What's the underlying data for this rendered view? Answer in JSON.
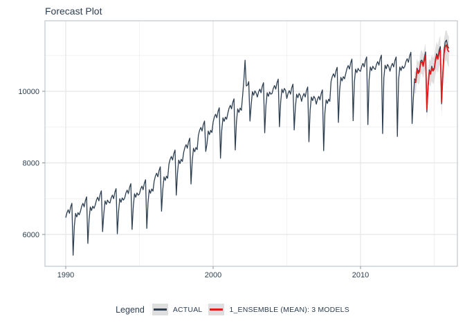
{
  "title": "Forecast Plot",
  "colors": {
    "actual": "#2c3e50",
    "ensemble": "#e31a1c",
    "ribbon": "#d8d8d8",
    "grid_major": "#e5e5e5",
    "grid_minor": "#f1f1f1",
    "panel_border": "#b6bbc1",
    "tick": "#8a9097",
    "text": "#2c3e50"
  },
  "legend": {
    "title": "Legend",
    "items": [
      {
        "label": "ACTUAL",
        "color": "#2c3e50"
      },
      {
        "label": "1_ENSEMBLE (MEAN): 3 MODELS",
        "color": "#e31a1c"
      }
    ]
  },
  "x_axis": {
    "ticks": [
      {
        "label": "1990",
        "year": 1990
      },
      {
        "label": "2000",
        "year": 2000
      },
      {
        "label": "2010",
        "year": 2010
      }
    ],
    "minor_years": [
      1995,
      2005,
      2015
    ]
  },
  "y_axis": {
    "ticks": [
      {
        "label": "6000",
        "value": 6000
      },
      {
        "label": "8000",
        "value": 8000
      },
      {
        "label": "10000",
        "value": 10000
      }
    ],
    "minor_values": [
      7000,
      9000,
      11000
    ]
  },
  "chart_data": {
    "type": "line",
    "title": "Forecast Plot",
    "xlabel": "",
    "ylabel": "",
    "x_start_year": 1990,
    "frequency": "monthly",
    "xlim": [
      1988.6,
      2016.6
    ],
    "ylim": [
      5100,
      11980
    ],
    "grid": true,
    "legend_position": "bottom",
    "series": [
      {
        "name": "ACTUAL",
        "start_month_index": 0,
        "values": [
          6470,
          6610,
          6690,
          6590,
          6770,
          6870,
          5420,
          6230,
          6590,
          6490,
          6610,
          6550,
          6650,
          6790,
          6870,
          6770,
          6950,
          7050,
          5750,
          6410,
          6770,
          6670,
          6790,
          6730,
          6820,
          6960,
          7040,
          6940,
          7120,
          7220,
          6080,
          6580,
          6940,
          6840,
          6960,
          6900,
          6880,
          7020,
          7100,
          7000,
          7180,
          7280,
          6020,
          6640,
          7000,
          6900,
          7020,
          6960,
          7020,
          7160,
          7240,
          7140,
          7320,
          7420,
          6140,
          6780,
          7140,
          7040,
          7160,
          7100,
          7130,
          7270,
          7350,
          7250,
          7430,
          7530,
          6170,
          6890,
          7250,
          7150,
          7270,
          7210,
          7490,
          7630,
          7710,
          7610,
          7790,
          7890,
          6650,
          7250,
          7610,
          7510,
          7630,
          7570,
          7960,
          8100,
          8180,
          8080,
          8260,
          8360,
          7100,
          7720,
          8080,
          7980,
          8100,
          8040,
          8290,
          8430,
          8510,
          8410,
          8590,
          8690,
          7410,
          8050,
          8410,
          8310,
          8430,
          8370,
          8770,
          8910,
          8990,
          8890,
          9070,
          9170,
          8320,
          8530,
          8890,
          8790,
          8910,
          8850,
          9140,
          9280,
          9360,
          9260,
          9440,
          9540,
          8130,
          8900,
          9260,
          9160,
          9280,
          9220,
          9390,
          9530,
          9610,
          9510,
          9690,
          9790,
          8360,
          9150,
          9510,
          9410,
          9530,
          9470,
          9870,
          10300,
          10870,
          10150,
          10170,
          10270,
          9170,
          9630,
          9990,
          9890,
          10010,
          9950,
          9840,
          9980,
          10060,
          9960,
          10140,
          10240,
          8840,
          9600,
          9960,
          9860,
          9980,
          9920,
          9940,
          10080,
          10160,
          10060,
          10240,
          10340,
          9010,
          9700,
          10060,
          9960,
          10080,
          10020,
          9800,
          9940,
          10020,
          9920,
          10100,
          10200,
          8920,
          9560,
          9920,
          9820,
          9940,
          9880,
          9720,
          9860,
          9940,
          9840,
          10020,
          10120,
          8590,
          9480,
          9840,
          9740,
          9860,
          9800,
          9640,
          9780,
          9860,
          9760,
          9940,
          10040,
          8340,
          9400,
          9760,
          9660,
          9780,
          9720,
          10270,
          10410,
          10490,
          10390,
          10570,
          10670,
          9130,
          10030,
          10390,
          10290,
          10410,
          10350,
          10500,
          10640,
          10720,
          10620,
          10800,
          10900,
          9180,
          10260,
          10620,
          10520,
          10640,
          10580,
          10560,
          10700,
          10780,
          10680,
          10860,
          10960,
          9070,
          10320,
          10680,
          10580,
          10700,
          10640,
          10610,
          10750,
          10830,
          10730,
          10910,
          11010,
          8820,
          10370,
          10730,
          10630,
          10750,
          10690,
          10560,
          10700,
          10780,
          10680,
          10860,
          10960,
          8740,
          10320,
          10680,
          10580,
          10700,
          10640,
          10690,
          10830,
          10910,
          10810,
          10990,
          11090,
          9100,
          9800,
          10350,
          10300,
          10650,
          10550,
          10600,
          10850,
          10870,
          10750,
          10950,
          11100,
          9420,
          10100,
          10600,
          10500,
          10700,
          10600,
          10650,
          10900,
          11050,
          10950,
          11150,
          11250,
          9650,
          10500,
          11150,
          11380,
          11430,
          11250,
          11200
        ]
      },
      {
        "name": "1_ENSEMBLE (MEAN): 3 MODELS",
        "start_month_index": 284,
        "values": [
          10250,
          10250,
          10600,
          10500,
          10550,
          10800,
          10820,
          10700,
          10870,
          11000,
          9500,
          10150,
          10550,
          10480,
          10650,
          10570,
          10620,
          10850,
          11000,
          10900,
          11080,
          11150,
          9700,
          10480,
          11050,
          11250,
          11295,
          11150,
          11100
        ],
        "conf_interval": {
          "start_half_width": 300,
          "end_half_width": 430
        }
      }
    ]
  }
}
